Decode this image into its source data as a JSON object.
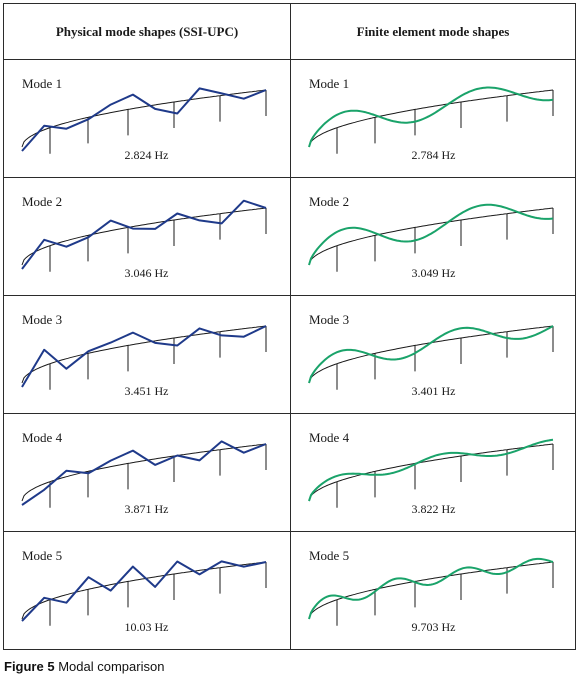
{
  "headers": {
    "left": "Physical mode shapes (SSI-UPC)",
    "right": "Finite element mode shapes"
  },
  "colors": {
    "physical": "#1f3a8a",
    "fe": "#1aa36a",
    "baseline": "#1a1a1a",
    "border": "#2b2b2b"
  },
  "rows": [
    {
      "mode": "Mode 1",
      "physical_freq": "2.824 Hz",
      "fe_freq": "2.784 Hz"
    },
    {
      "mode": "Mode 2",
      "physical_freq": "3.046 Hz",
      "fe_freq": "3.049 Hz"
    },
    {
      "mode": "Mode 3",
      "physical_freq": "3.451 Hz",
      "fe_freq": "3.401 Hz"
    },
    {
      "mode": "Mode 4",
      "physical_freq": "3.871 Hz",
      "fe_freq": "3.822 Hz"
    },
    {
      "mode": "Mode 5",
      "physical_freq": "10.03 Hz",
      "fe_freq": "9.703 Hz"
    }
  ],
  "caption": {
    "figure": "Figure 5",
    "text": "Modal comparison"
  }
}
